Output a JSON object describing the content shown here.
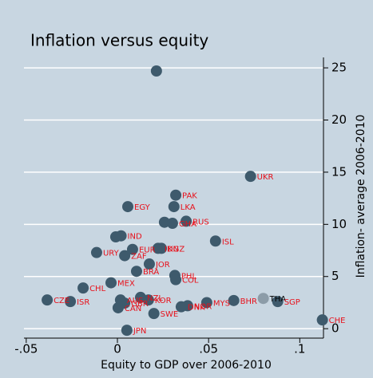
{
  "chart_data": {
    "type": "scatter",
    "title": "Inflation versus equity",
    "x_label": "Equity to GDP over 2006-2010",
    "y_label": "Inflation- average 2006-2010",
    "x": [
      0.0214,
      0.073,
      0.032,
      0.031,
      0.0057,
      0.0258,
      0.0302,
      0.0377,
      0.0538,
      0.002,
      -0.0009,
      0.0083,
      0.0223,
      0.0241,
      -0.0114,
      0.004,
      0.0175,
      0.0105,
      0.0315,
      0.032,
      -0.0188,
      -0.0035,
      -0.0385,
      -0.0258,
      0.049,
      0.0638,
      0.08,
      0.0879,
      0.1124,
      0.0385,
      0.035,
      0.02,
      0.0052,
      0.0017,
      0.004,
      0.0004,
      0.0127,
      0.017
    ],
    "y": [
      24.7,
      14.6,
      12.8,
      11.7,
      11.7,
      10.2,
      10.1,
      10.3,
      8.4,
      8.9,
      8.8,
      7.6,
      7.7,
      7.7,
      7.3,
      7.0,
      6.2,
      5.5,
      5.1,
      4.7,
      3.9,
      4.4,
      2.75,
      2.6,
      2.5,
      2.7,
      2.9,
      2.6,
      0.84,
      2.2,
      2.1,
      1.45,
      -0.15,
      2.75,
      2.45,
      2.0,
      3.0,
      2.75
    ],
    "labels": [
      null,
      "UKR",
      "PAK",
      "LKA",
      "EGY",
      null,
      "GHA",
      "RUS",
      "ISL",
      "IND",
      null,
      "EUR",
      "IDN",
      "KGZ",
      "URY",
      "ZAF",
      "JOR",
      "BRA",
      "PHL",
      "COL",
      "CHL",
      "MEX",
      "CZE",
      "ISR",
      "MYS",
      "BHR",
      "THA",
      "SGP",
      "CHE",
      "NOR",
      "DNK",
      "SWE",
      "JPN",
      "AUS",
      "GBR",
      "CAN",
      "NZL",
      "KOR"
    ],
    "point_colors": [
      "#3e5a6c",
      "#3e5a6c",
      "#3e5a6c",
      "#3e5a6c",
      "#3e5a6c",
      "#3e5a6c",
      "#3e5a6c",
      "#3e5a6c",
      "#3e5a6c",
      "#3e5a6c",
      "#3e5a6c",
      "#3e5a6c",
      "#3e5a6c",
      "#3e5a6c",
      "#3e5a6c",
      "#3e5a6c",
      "#3e5a6c",
      "#3e5a6c",
      "#3e5a6c",
      "#3e5a6c",
      "#3e5a6c",
      "#3e5a6c",
      "#3e5a6c",
      "#3e5a6c",
      "#3e5a6c",
      "#3e5a6c",
      "#8c9ca8",
      "#3e5a6c",
      "#3e5a6c",
      "#3e5a6c",
      "#3e5a6c",
      "#3e5a6c",
      "#3e5a6c",
      "#3e5a6c",
      "#3e5a6c",
      "#3e5a6c",
      "#3e5a6c",
      "#3e5a6c"
    ],
    "label_colors": [
      "#e8101a",
      "#e8101a",
      "#e8101a",
      "#e8101a",
      "#e8101a",
      "#e8101a",
      "#e8101a",
      "#e8101a",
      "#e8101a",
      "#e8101a",
      "#e8101a",
      "#e8101a",
      "#e8101a",
      "#e8101a",
      "#e8101a",
      "#e8101a",
      "#e8101a",
      "#e8101a",
      "#e8101a",
      "#e8101a",
      "#e8101a",
      "#e8101a",
      "#e8101a",
      "#e8101a",
      "#e8101a",
      "#e8101a",
      "#000000",
      "#e8101a",
      "#e8101a",
      "#e8101a",
      "#e8101a",
      "#e8101a",
      "#e8101a",
      "#e8101a",
      "#e8101a",
      "#e8101a",
      "#e8101a",
      "#e8101a"
    ],
    "xlim": [
      -0.06,
      0.113
    ],
    "ylim": [
      -0.6,
      26
    ],
    "xticks": [
      {
        "value": -0.05,
        "label": "-.05"
      },
      0,
      {
        "value": 0.05,
        "label": ".05"
      },
      {
        "value": 0.1,
        "label": ".1"
      }
    ],
    "yticks": [
      0,
      5,
      10,
      15,
      20,
      25
    ],
    "grid": true
  }
}
